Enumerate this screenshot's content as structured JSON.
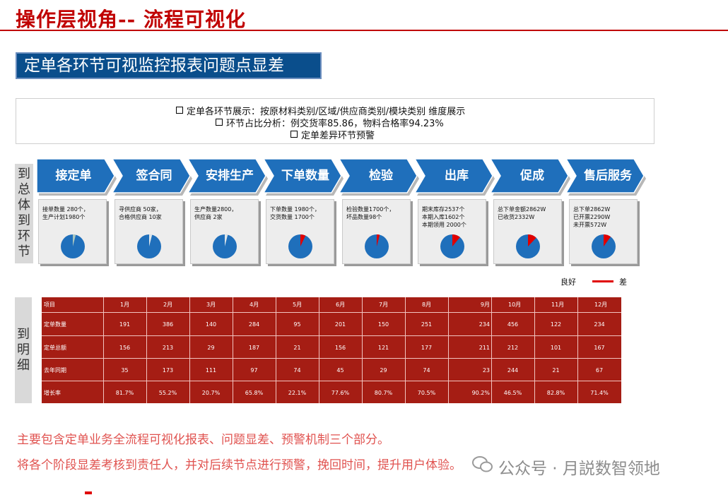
{
  "title": "操作层视角-- 流程可视化",
  "banner": "定单各环节可视监控报表问题点显差",
  "info": [
    "定单各环节展示：按原材料类别/区域/供应商类别/模块类别  维度展示",
    "环节占比分析：例交货率85.86，物料合格率94.23%",
    "定单差异环节预警"
  ],
  "side_labels": {
    "overall": "到总体到环节",
    "detail": "到明细"
  },
  "stages": [
    "接定单",
    "签合同",
    "安排生产",
    "下单数量",
    "检验",
    "出库",
    "促成",
    "售后服务"
  ],
  "cards": [
    {
      "lines": [
        "接单数量 280个，",
        "生产计划1980个"
      ],
      "bad_pct": 4,
      "bad_color": "#a9c6bf"
    },
    {
      "lines": [
        "寻供应商  50家，",
        "合格供应商 10家"
      ],
      "bad_pct": 4,
      "bad_color": "#dfe6ea"
    },
    {
      "lines": [
        "生产数量2800，",
        "供应商 2家"
      ],
      "bad_pct": 4,
      "bad_color": "#dfe6ea"
    },
    {
      "lines": [
        "下单数量 1980个，",
        "交货数量 1700个"
      ],
      "bad_pct": 7,
      "bad_color": "#e00000"
    },
    {
      "lines": [
        "检验数量1700个，",
        "坏品数量98个"
      ],
      "bad_pct": 4,
      "bad_color": "#e00000"
    },
    {
      "lines": [
        "期末库存2537个",
        "本期入库1602个",
        "本期领用 2000个"
      ],
      "bad_pct": 11,
      "bad_color": "#e00000"
    },
    {
      "lines": [
        "总下单金额2862W",
        "已收货2332W"
      ],
      "bad_pct": 12,
      "bad_color": "#e00000"
    },
    {
      "lines": [
        "总下单2862W",
        "已开票2290W",
        "未开票572W"
      ],
      "bad_pct": 10,
      "bad_color": "#e00000"
    }
  ],
  "legend": {
    "good": "良好",
    "bad": "差"
  },
  "table": {
    "headers": [
      "项目",
      "1月",
      "2月",
      "3月",
      "4月",
      "5月",
      "6月",
      "7月",
      "8月",
      "9月",
      "10月",
      "11月",
      "12月"
    ],
    "rows": [
      [
        "定单数量",
        "191",
        "386",
        "140",
        "284",
        "95",
        "201",
        "150",
        "251",
        "234",
        "456",
        "122",
        "234"
      ],
      [
        "定单总额",
        "156",
        "213",
        "29",
        "187",
        "21",
        "156",
        "121",
        "177",
        "211",
        "212",
        "101",
        "167"
      ],
      [
        "去年同期",
        "35",
        "173",
        "111",
        "97",
        "74",
        "45",
        "29",
        "74",
        "23",
        "244",
        "21",
        "67"
      ],
      [
        "增长率",
        "81.7%",
        "55.2%",
        "20.7%",
        "65.8%",
        "22.1%",
        "77.6%",
        "80.7%",
        "70.5%",
        "90.2%",
        "46.5%",
        "82.8%",
        "71.4%"
      ]
    ]
  },
  "footer": [
    "主要包含定单业务全流程可视化报表、问题显差、预警机制三个部分。",
    "将各个阶段显差考核到责任人，并对后续节点进行预警，挽回时间，提升用户体验。"
  ],
  "watermark": "公众号 · 月説数智领地",
  "colors": {
    "accent_red": "#c00000",
    "banner_blue": "#0a4e8c",
    "stage_blue": "#1f6fbb",
    "pie_blue": "#1f6fbb",
    "table_red": "#a51d14",
    "bad_red": "#e00000"
  }
}
